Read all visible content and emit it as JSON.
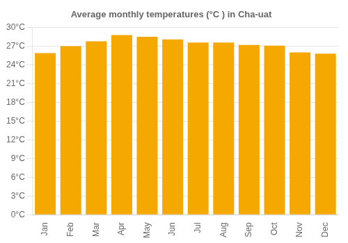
{
  "chart_data": {
    "type": "bar",
    "title": "Average monthly temperatures (°C ) in Cha-uat",
    "categories": [
      "Jan",
      "Feb",
      "Mar",
      "Apr",
      "May",
      "Jun",
      "Jul",
      "Aug",
      "Sep",
      "Oct",
      "Nov",
      "Dec"
    ],
    "values": [
      25.9,
      27.0,
      27.8,
      28.8,
      28.5,
      28.1,
      27.6,
      27.6,
      27.2,
      27.1,
      26.0,
      25.8
    ],
    "color": "#F5A800",
    "ylim": [
      0,
      30
    ],
    "yticks": [
      {
        "value": 0,
        "label": "0°C"
      },
      {
        "value": 3,
        "label": "3°C"
      },
      {
        "value": 6,
        "label": "6°C"
      },
      {
        "value": 9,
        "label": "9°C"
      },
      {
        "value": 12,
        "label": "12°C"
      },
      {
        "value": 15,
        "label": "15°C"
      },
      {
        "value": 18,
        "label": "18°C"
      },
      {
        "value": 21,
        "label": "21°C"
      },
      {
        "value": 24,
        "label": "24°C"
      },
      {
        "value": 27,
        "label": "27°C"
      },
      {
        "value": 30,
        "label": "30°C"
      }
    ],
    "grid": true
  }
}
